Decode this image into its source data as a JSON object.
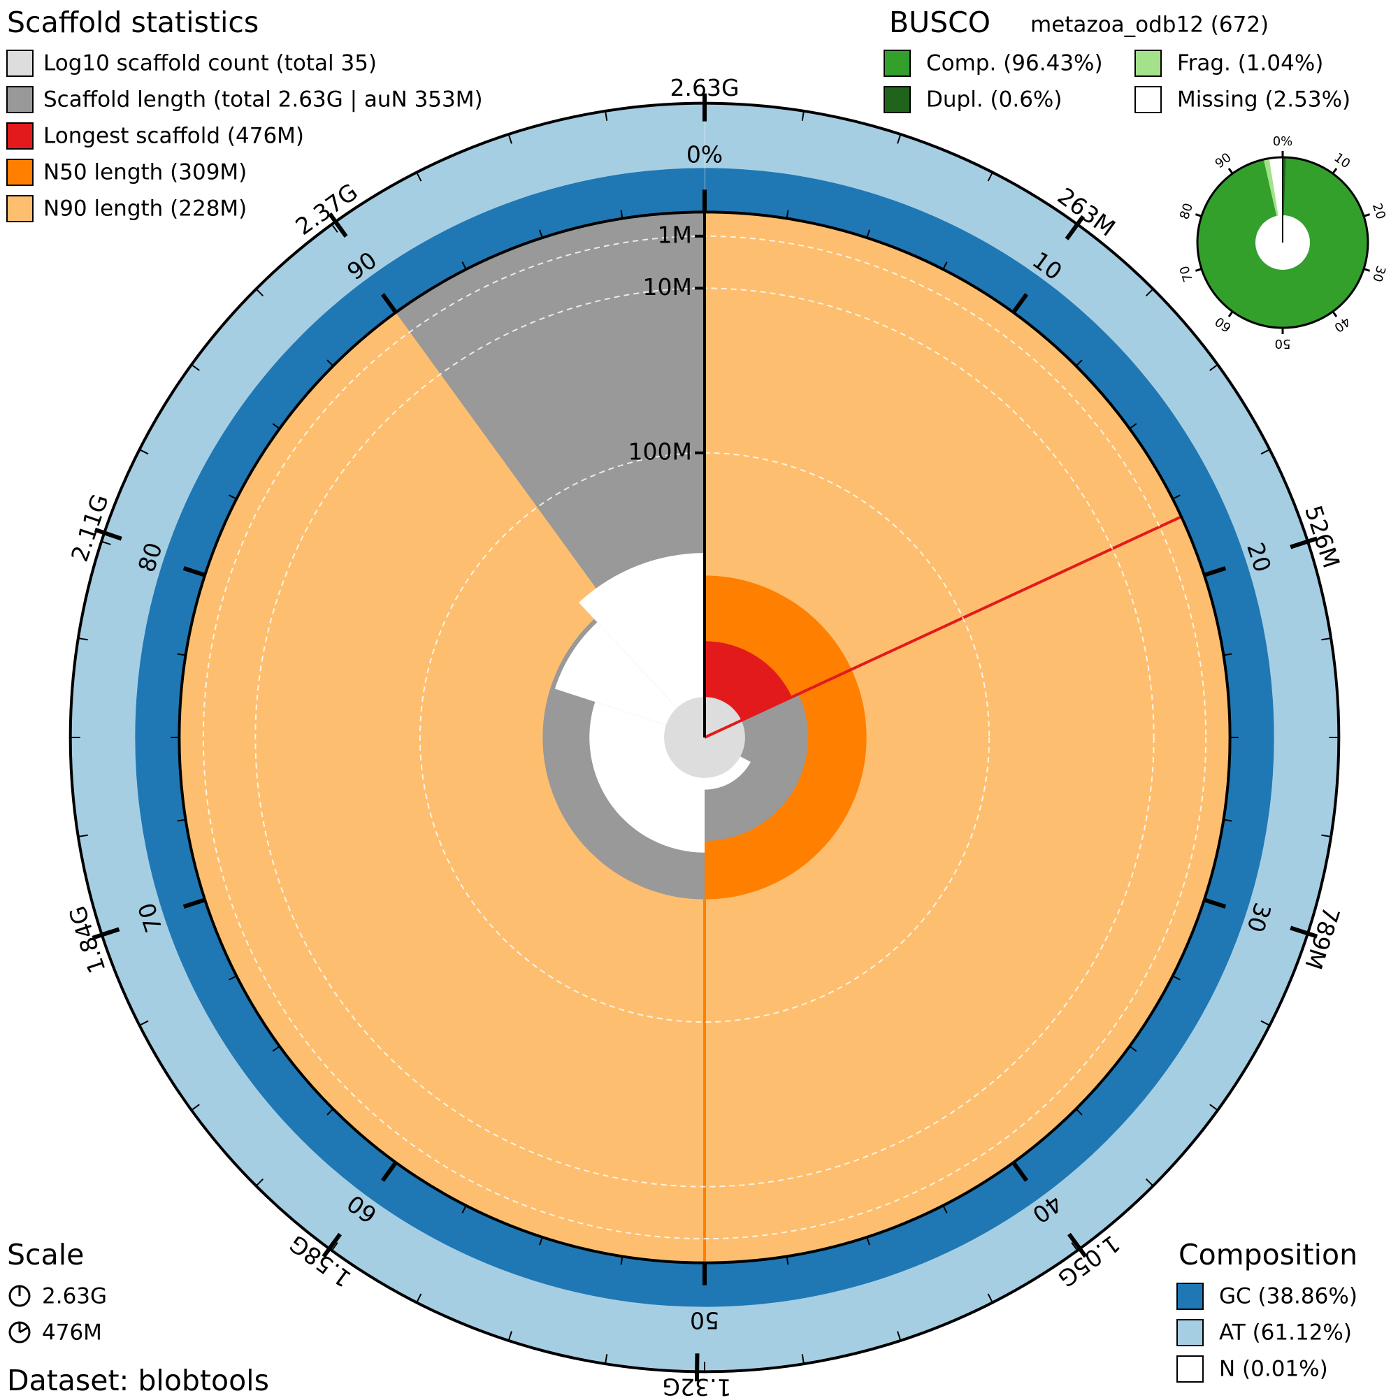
{
  "chart_data": {
    "type": "snail",
    "title": "Scaffold statistics",
    "legend": [
      {
        "name": "Log10 scaffold count (total 35)",
        "color": "#dddddd"
      },
      {
        "name": "Scaffold length (total 2.63G | auN 353M)",
        "color": "#999999"
      },
      {
        "name": "Longest scaffold (476M)",
        "color": "#e31a1c"
      },
      {
        "name": "N50 length (309M)",
        "color": "#ff7f00"
      },
      {
        "name": "N90 length (228M)",
        "color": "#fdbf6f"
      }
    ],
    "total": 2630000000,
    "longest": 476000000,
    "n50": 309000000,
    "n90": 228000000,
    "length_ticks": [
      {
        "value": 2630000000,
        "label": "2.63G"
      },
      {
        "value": 263000000,
        "label": "263M"
      },
      {
        "value": 526000000,
        "label": "526M"
      },
      {
        "value": 789000000,
        "label": "789M"
      },
      {
        "value": 1050000000,
        "label": "1.05G"
      },
      {
        "value": 1320000000,
        "label": "1.32G"
      },
      {
        "value": 1580000000,
        "label": "1.58G"
      },
      {
        "value": 1840000000,
        "label": "1.84G"
      },
      {
        "value": 2110000000,
        "label": "2.11G"
      },
      {
        "value": 2370000000,
        "label": "2.37G"
      }
    ],
    "percent_ticks": [
      {
        "value": 0,
        "label": "0%"
      },
      10,
      20,
      30,
      40,
      50,
      60,
      70,
      80,
      90
    ],
    "radius_ticks": [
      {
        "value": 1000000,
        "label": "1M"
      },
      {
        "value": 10000000,
        "label": "10M"
      },
      {
        "value": 100000000,
        "label": "100M"
      }
    ],
    "busco": {
      "title": "BUSCO",
      "lineage": "metazoa_odb12 (672)",
      "series": [
        {
          "name": "Comp. (96.43%)",
          "value": 96.43,
          "color": "#33a02c"
        },
        {
          "name": "Frag. (1.04%)",
          "value": 1.04,
          "color": "#a3e28a"
        },
        {
          "name": "Dupl. (0.6%)",
          "value": 0.6,
          "color": "#20641c"
        },
        {
          "name": "Missing (2.53%)",
          "value": 2.53,
          "color": "#ffffff"
        }
      ],
      "ticks": [
        {
          "value": 0,
          "label": "0%"
        },
        10,
        20,
        30,
        40,
        50,
        60,
        70,
        80,
        90
      ]
    },
    "scale": {
      "title": "Scale",
      "labels": [
        "2.63G",
        "476M"
      ]
    },
    "dataset": "Dataset: blobtools",
    "composition": {
      "title": "Composition",
      "series": [
        {
          "name": "GC (38.86%)",
          "value": 38.86,
          "color": "#1f78b4"
        },
        {
          "name": "AT (61.12%)",
          "value": 61.12,
          "color": "#a6cee3"
        },
        {
          "name": "N (0.01%)",
          "value": 0.01,
          "color": "#ffffff"
        }
      ]
    }
  }
}
